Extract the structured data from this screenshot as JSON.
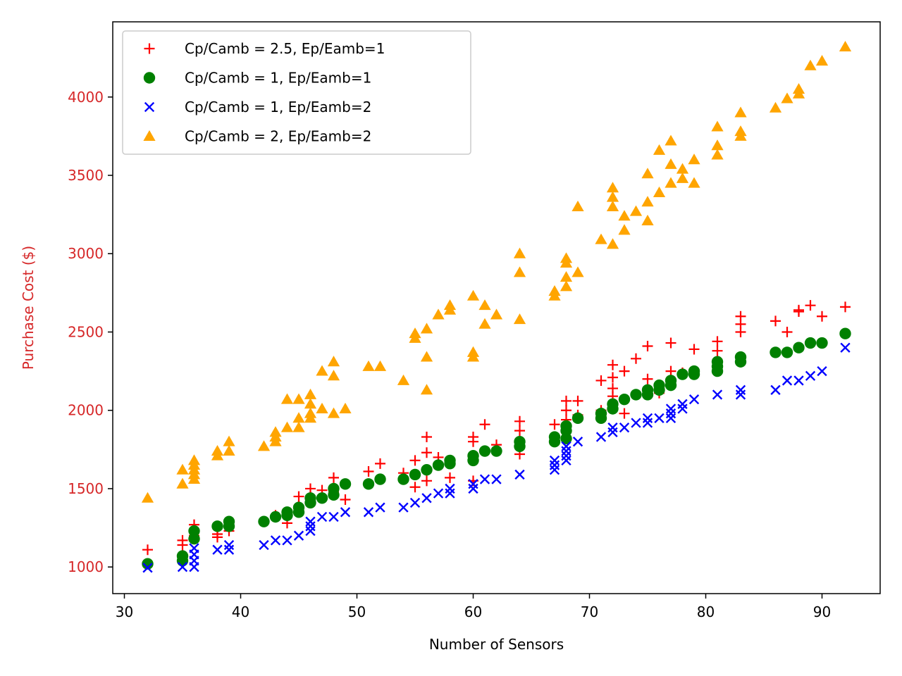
{
  "chart_data": {
    "type": "scatter",
    "xlabel": "Number of Sensors",
    "ylabel": "Purchase Cost ($)",
    "xlim": [
      29,
      95
    ],
    "ylim": [
      830,
      4480
    ],
    "x_ticks": [
      30,
      40,
      50,
      60,
      70,
      80,
      90
    ],
    "y_ticks": [
      1000,
      1500,
      2000,
      2500,
      3000,
      3500,
      4000
    ],
    "x_tick_labels": [
      "30",
      "40",
      "50",
      "60",
      "70",
      "80",
      "90"
    ],
    "y_tick_labels": [
      "1000",
      "1500",
      "2000",
      "2500",
      "3000",
      "3500",
      "4000"
    ],
    "ylabel_color": "#d62728",
    "ytick_color": "#d62728",
    "grid": false,
    "legend_position": "top-left",
    "series": [
      {
        "name": "Cp/Camb = 2.5, Ep/Eamb=1",
        "marker": "plus",
        "color": "#ff0000",
        "points": [
          [
            32,
            1110
          ],
          [
            35,
            1170
          ],
          [
            35,
            1140
          ],
          [
            36,
            1270
          ],
          [
            36,
            1200
          ],
          [
            38,
            1190
          ],
          [
            38,
            1210
          ],
          [
            39,
            1230
          ],
          [
            39,
            1270
          ],
          [
            43,
            1330
          ],
          [
            44,
            1280
          ],
          [
            45,
            1450
          ],
          [
            45,
            1390
          ],
          [
            46,
            1500
          ],
          [
            46,
            1450
          ],
          [
            47,
            1490
          ],
          [
            48,
            1570
          ],
          [
            48,
            1480
          ],
          [
            49,
            1430
          ],
          [
            51,
            1610
          ],
          [
            52,
            1660
          ],
          [
            54,
            1600
          ],
          [
            55,
            1680
          ],
          [
            55,
            1510
          ],
          [
            56,
            1830
          ],
          [
            56,
            1730
          ],
          [
            56,
            1550
          ],
          [
            57,
            1700
          ],
          [
            58,
            1670
          ],
          [
            58,
            1570
          ],
          [
            60,
            1830
          ],
          [
            60,
            1800
          ],
          [
            60,
            1550
          ],
          [
            61,
            1910
          ],
          [
            61,
            1740
          ],
          [
            62,
            1780
          ],
          [
            64,
            1930
          ],
          [
            64,
            1870
          ],
          [
            64,
            1720
          ],
          [
            67,
            1910
          ],
          [
            67,
            1810
          ],
          [
            68,
            2060
          ],
          [
            68,
            2000
          ],
          [
            68,
            1940
          ],
          [
            68,
            1880
          ],
          [
            69,
            2060
          ],
          [
            69,
            1970
          ],
          [
            71,
            2190
          ],
          [
            71,
            2000
          ],
          [
            72,
            2290
          ],
          [
            72,
            2210
          ],
          [
            72,
            2140
          ],
          [
            72,
            2090
          ],
          [
            73,
            2250
          ],
          [
            73,
            1980
          ],
          [
            74,
            2330
          ],
          [
            75,
            2410
          ],
          [
            75,
            2200
          ],
          [
            76,
            2110
          ],
          [
            77,
            2430
          ],
          [
            77,
            2250
          ],
          [
            78,
            2240
          ],
          [
            79,
            2390
          ],
          [
            81,
            2440
          ],
          [
            81,
            2380
          ],
          [
            83,
            2600
          ],
          [
            83,
            2550
          ],
          [
            83,
            2500
          ],
          [
            86,
            2570
          ],
          [
            87,
            2500
          ],
          [
            88,
            2640
          ],
          [
            88,
            2630
          ],
          [
            89,
            2670
          ],
          [
            90,
            2600
          ],
          [
            92,
            2660
          ]
        ]
      },
      {
        "name": "Cp/Camb = 1, Ep/Eamb=1",
        "marker": "circle",
        "color": "#008000",
        "points": [
          [
            32,
            1020
          ],
          [
            35,
            1070
          ],
          [
            35,
            1040
          ],
          [
            36,
            1230
          ],
          [
            36,
            1180
          ],
          [
            38,
            1260
          ],
          [
            39,
            1290
          ],
          [
            39,
            1260
          ],
          [
            42,
            1290
          ],
          [
            43,
            1320
          ],
          [
            44,
            1350
          ],
          [
            44,
            1330
          ],
          [
            45,
            1380
          ],
          [
            45,
            1350
          ],
          [
            46,
            1440
          ],
          [
            46,
            1410
          ],
          [
            47,
            1440
          ],
          [
            48,
            1500
          ],
          [
            48,
            1460
          ],
          [
            49,
            1530
          ],
          [
            51,
            1530
          ],
          [
            52,
            1560
          ],
          [
            54,
            1560
          ],
          [
            55,
            1590
          ],
          [
            56,
            1620
          ],
          [
            57,
            1650
          ],
          [
            58,
            1680
          ],
          [
            58,
            1660
          ],
          [
            60,
            1710
          ],
          [
            60,
            1680
          ],
          [
            61,
            1740
          ],
          [
            62,
            1740
          ],
          [
            64,
            1800
          ],
          [
            64,
            1770
          ],
          [
            67,
            1830
          ],
          [
            67,
            1800
          ],
          [
            68,
            1900
          ],
          [
            68,
            1870
          ],
          [
            68,
            1820
          ],
          [
            69,
            1950
          ],
          [
            71,
            1980
          ],
          [
            71,
            1950
          ],
          [
            72,
            2040
          ],
          [
            72,
            2010
          ],
          [
            73,
            2070
          ],
          [
            74,
            2100
          ],
          [
            75,
            2130
          ],
          [
            75,
            2100
          ],
          [
            76,
            2160
          ],
          [
            76,
            2130
          ],
          [
            77,
            2190
          ],
          [
            77,
            2160
          ],
          [
            78,
            2230
          ],
          [
            79,
            2250
          ],
          [
            79,
            2230
          ],
          [
            81,
            2310
          ],
          [
            81,
            2280
          ],
          [
            81,
            2250
          ],
          [
            83,
            2340
          ],
          [
            83,
            2310
          ],
          [
            86,
            2370
          ],
          [
            87,
            2370
          ],
          [
            88,
            2400
          ],
          [
            89,
            2430
          ],
          [
            90,
            2430
          ],
          [
            92,
            2490
          ]
        ]
      },
      {
        "name": "Cp/Camb = 1, Ep/Eamb=2",
        "marker": "x",
        "color": "#0000ff",
        "points": [
          [
            32,
            995
          ],
          [
            35,
            1000
          ],
          [
            36,
            1120
          ],
          [
            36,
            1080
          ],
          [
            36,
            1040
          ],
          [
            36,
            1000
          ],
          [
            38,
            1110
          ],
          [
            39,
            1140
          ],
          [
            39,
            1110
          ],
          [
            42,
            1140
          ],
          [
            43,
            1170
          ],
          [
            44,
            1170
          ],
          [
            45,
            1200
          ],
          [
            46,
            1290
          ],
          [
            46,
            1260
          ],
          [
            46,
            1230
          ],
          [
            47,
            1320
          ],
          [
            48,
            1320
          ],
          [
            49,
            1350
          ],
          [
            51,
            1350
          ],
          [
            52,
            1380
          ],
          [
            54,
            1380
          ],
          [
            55,
            1410
          ],
          [
            56,
            1440
          ],
          [
            57,
            1470
          ],
          [
            58,
            1500
          ],
          [
            58,
            1470
          ],
          [
            60,
            1530
          ],
          [
            60,
            1500
          ],
          [
            61,
            1560
          ],
          [
            62,
            1560
          ],
          [
            64,
            1590
          ],
          [
            67,
            1680
          ],
          [
            67,
            1650
          ],
          [
            67,
            1620
          ],
          [
            68,
            1770
          ],
          [
            68,
            1740
          ],
          [
            68,
            1710
          ],
          [
            68,
            1680
          ],
          [
            69,
            1800
          ],
          [
            71,
            1830
          ],
          [
            72,
            1890
          ],
          [
            72,
            1860
          ],
          [
            73,
            1890
          ],
          [
            74,
            1920
          ],
          [
            75,
            1950
          ],
          [
            75,
            1920
          ],
          [
            76,
            1950
          ],
          [
            77,
            2010
          ],
          [
            77,
            1980
          ],
          [
            77,
            1950
          ],
          [
            78,
            2040
          ],
          [
            78,
            2010
          ],
          [
            79,
            2070
          ],
          [
            81,
            2100
          ],
          [
            83,
            2130
          ],
          [
            83,
            2100
          ],
          [
            86,
            2130
          ],
          [
            87,
            2190
          ],
          [
            88,
            2190
          ],
          [
            89,
            2220
          ],
          [
            90,
            2250
          ],
          [
            92,
            2400
          ]
        ]
      },
      {
        "name": "Cp/Camb = 2, Ep/Eamb=2",
        "marker": "triangle",
        "color": "#ffa500",
        "points": [
          [
            32,
            1440
          ],
          [
            35,
            1620
          ],
          [
            35,
            1530
          ],
          [
            36,
            1680
          ],
          [
            36,
            1650
          ],
          [
            36,
            1620
          ],
          [
            36,
            1590
          ],
          [
            36,
            1560
          ],
          [
            38,
            1740
          ],
          [
            38,
            1710
          ],
          [
            39,
            1800
          ],
          [
            39,
            1740
          ],
          [
            42,
            1770
          ],
          [
            43,
            1860
          ],
          [
            43,
            1830
          ],
          [
            43,
            1800
          ],
          [
            44,
            2070
          ],
          [
            44,
            1890
          ],
          [
            45,
            2070
          ],
          [
            45,
            1950
          ],
          [
            45,
            1890
          ],
          [
            46,
            2100
          ],
          [
            46,
            2040
          ],
          [
            46,
            1980
          ],
          [
            46,
            1950
          ],
          [
            47,
            2250
          ],
          [
            47,
            2010
          ],
          [
            48,
            2310
          ],
          [
            48,
            2220
          ],
          [
            48,
            1980
          ],
          [
            49,
            2010
          ],
          [
            51,
            2280
          ],
          [
            52,
            2280
          ],
          [
            54,
            2190
          ],
          [
            55,
            2490
          ],
          [
            55,
            2460
          ],
          [
            56,
            2520
          ],
          [
            56,
            2340
          ],
          [
            56,
            2130
          ],
          [
            57,
            2610
          ],
          [
            58,
            2670
          ],
          [
            58,
            2640
          ],
          [
            60,
            2730
          ],
          [
            60,
            2370
          ],
          [
            60,
            2340
          ],
          [
            61,
            2670
          ],
          [
            61,
            2550
          ],
          [
            62,
            2610
          ],
          [
            64,
            3000
          ],
          [
            64,
            2880
          ],
          [
            64,
            2580
          ],
          [
            67,
            2760
          ],
          [
            67,
            2730
          ],
          [
            68,
            2970
          ],
          [
            68,
            2940
          ],
          [
            68,
            2850
          ],
          [
            68,
            2790
          ],
          [
            69,
            3300
          ],
          [
            69,
            2880
          ],
          [
            71,
            3090
          ],
          [
            72,
            3420
          ],
          [
            72,
            3360
          ],
          [
            72,
            3300
          ],
          [
            72,
            3060
          ],
          [
            73,
            3240
          ],
          [
            73,
            3150
          ],
          [
            74,
            3270
          ],
          [
            75,
            3510
          ],
          [
            75,
            3330
          ],
          [
            75,
            3210
          ],
          [
            76,
            3660
          ],
          [
            76,
            3390
          ],
          [
            77,
            3720
          ],
          [
            77,
            3570
          ],
          [
            77,
            3450
          ],
          [
            78,
            3540
          ],
          [
            78,
            3480
          ],
          [
            79,
            3600
          ],
          [
            79,
            3450
          ],
          [
            81,
            3810
          ],
          [
            81,
            3690
          ],
          [
            81,
            3630
          ],
          [
            83,
            3900
          ],
          [
            83,
            3780
          ],
          [
            83,
            3750
          ],
          [
            86,
            3930
          ],
          [
            87,
            3990
          ],
          [
            88,
            4050
          ],
          [
            88,
            4020
          ],
          [
            89,
            4200
          ],
          [
            90,
            4230
          ],
          [
            92,
            4320
          ]
        ]
      }
    ]
  }
}
